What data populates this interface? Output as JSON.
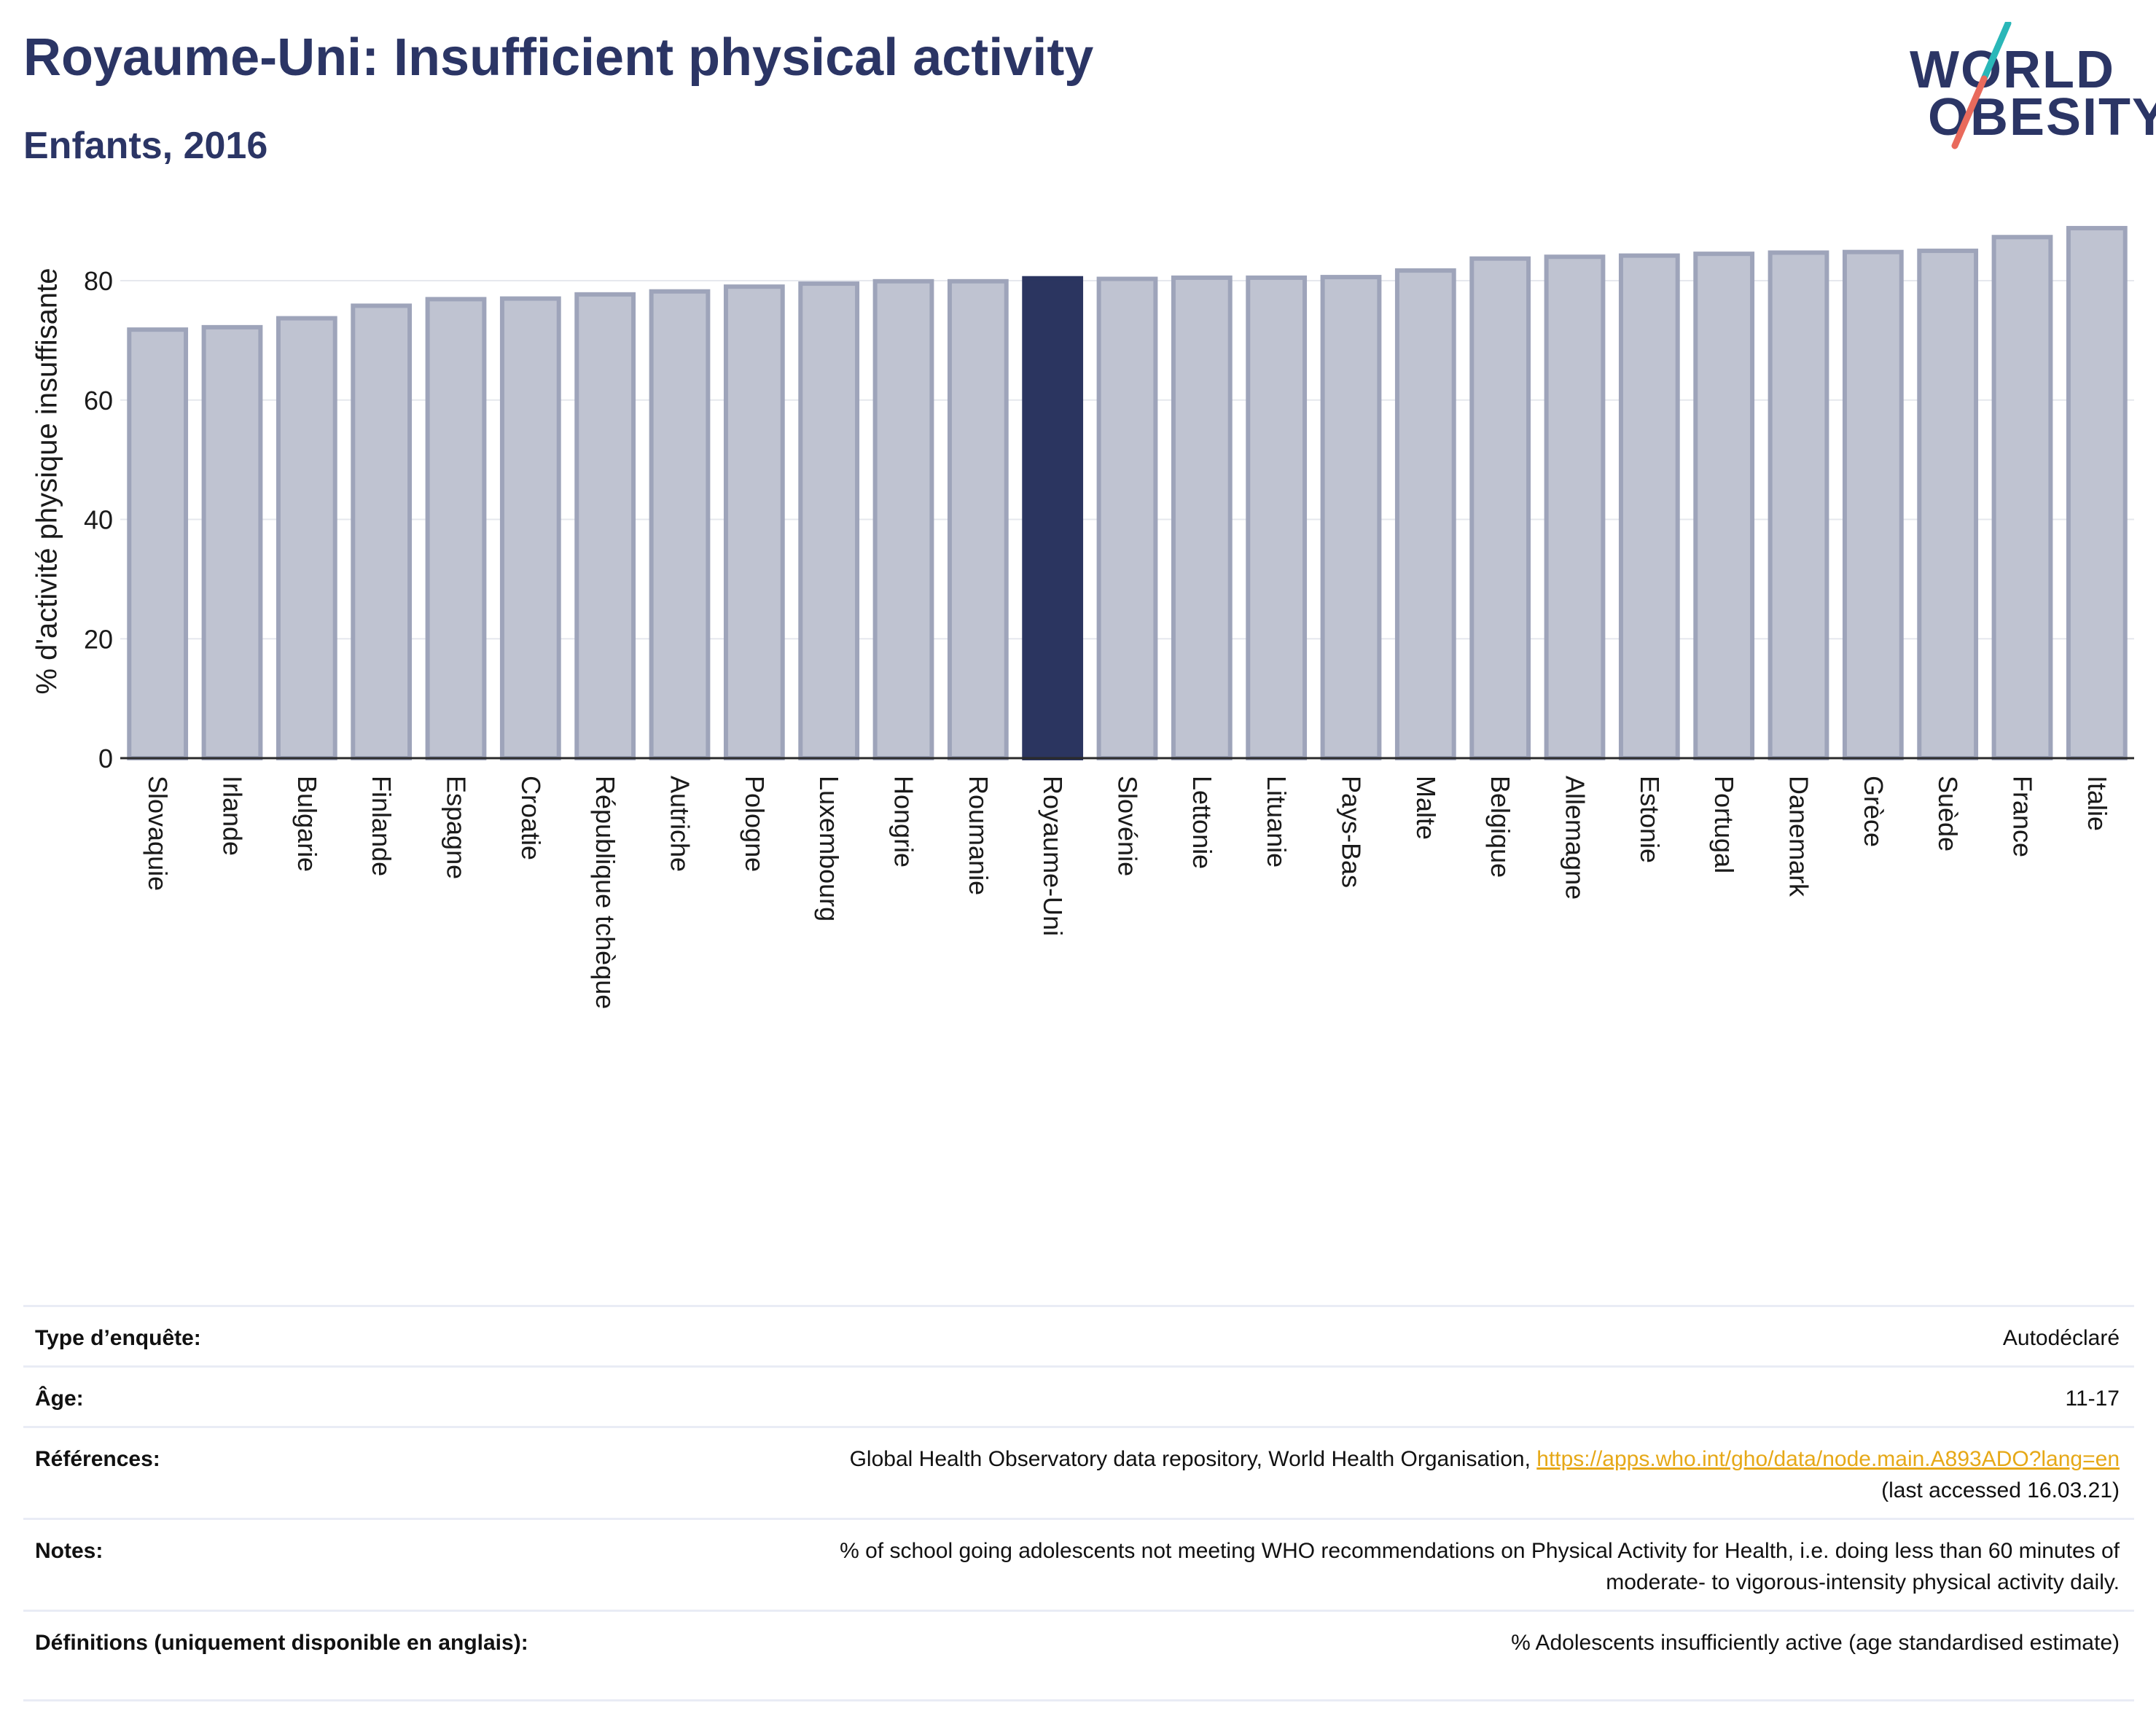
{
  "header": {
    "title": "Royaume-Uni: Insufficient physical activity",
    "subtitle": "Enfants, 2016"
  },
  "logo": {
    "line1": "WORLD",
    "line2": "OBESITY",
    "slash_colors": [
      "#2ab7b8",
      "#e96a5c"
    ]
  },
  "colors": {
    "bar_default": "#bfc3d1",
    "bar_default_stroke": "#9ea4ba",
    "bar_highlight": "#2b3560",
    "axis": "#2a2a2a",
    "grid": "#e6e8ee",
    "link": "#e6a817"
  },
  "chart_data": {
    "type": "bar",
    "ylabel": "% d'activité physique insuffisante",
    "ylim": [
      0,
      90
    ],
    "yticks": [
      0,
      20,
      40,
      60,
      80
    ],
    "grid": true,
    "highlight": "Royaume-Uni",
    "categories": [
      "Slovaquie",
      "Irlande",
      "Bulgarie",
      "Finlande",
      "Espagne",
      "Croatie",
      "République tchèque",
      "Autriche",
      "Pologne",
      "Luxembourg",
      "Hongrie",
      "Roumanie",
      "Royaume-Uni",
      "Slovénie",
      "Lettonie",
      "Lituanie",
      "Pays-Bas",
      "Malte",
      "Belgique",
      "Allemagne",
      "Estonie",
      "Portugal",
      "Danemark",
      "Grèce",
      "Suède",
      "France",
      "Italie"
    ],
    "values": [
      71.8,
      72.2,
      73.7,
      75.8,
      76.9,
      77.0,
      77.7,
      78.2,
      79.0,
      79.5,
      79.9,
      79.9,
      80.4,
      80.3,
      80.5,
      80.5,
      80.6,
      81.7,
      83.7,
      84.0,
      84.2,
      84.5,
      84.7,
      84.8,
      85.0,
      87.3,
      88.8
    ]
  },
  "meta": {
    "rows": [
      {
        "label": "Type d’enquête:",
        "value": "Autodéclaré"
      },
      {
        "label": "Âge:",
        "value": "11-17"
      },
      {
        "label": "Références:",
        "value": "Global Health Observatory data repository, World Health Organisation, ",
        "link": "https://apps.who.int/gho/data/node.main.A893ADO?lang=en",
        "value2": "(last accessed 16.03.21)"
      },
      {
        "label": "Notes:",
        "value": "% of school going adolescents not meeting WHO recommendations on Physical Activity for Health, i.e. doing less than 60 minutes of",
        "value2": "moderate- to vigorous-intensity physical activity daily."
      },
      {
        "label": "Définitions (uniquement disponible en anglais):",
        "value": "% Adolescents insufficiently active (age standardised estimate)"
      }
    ]
  }
}
